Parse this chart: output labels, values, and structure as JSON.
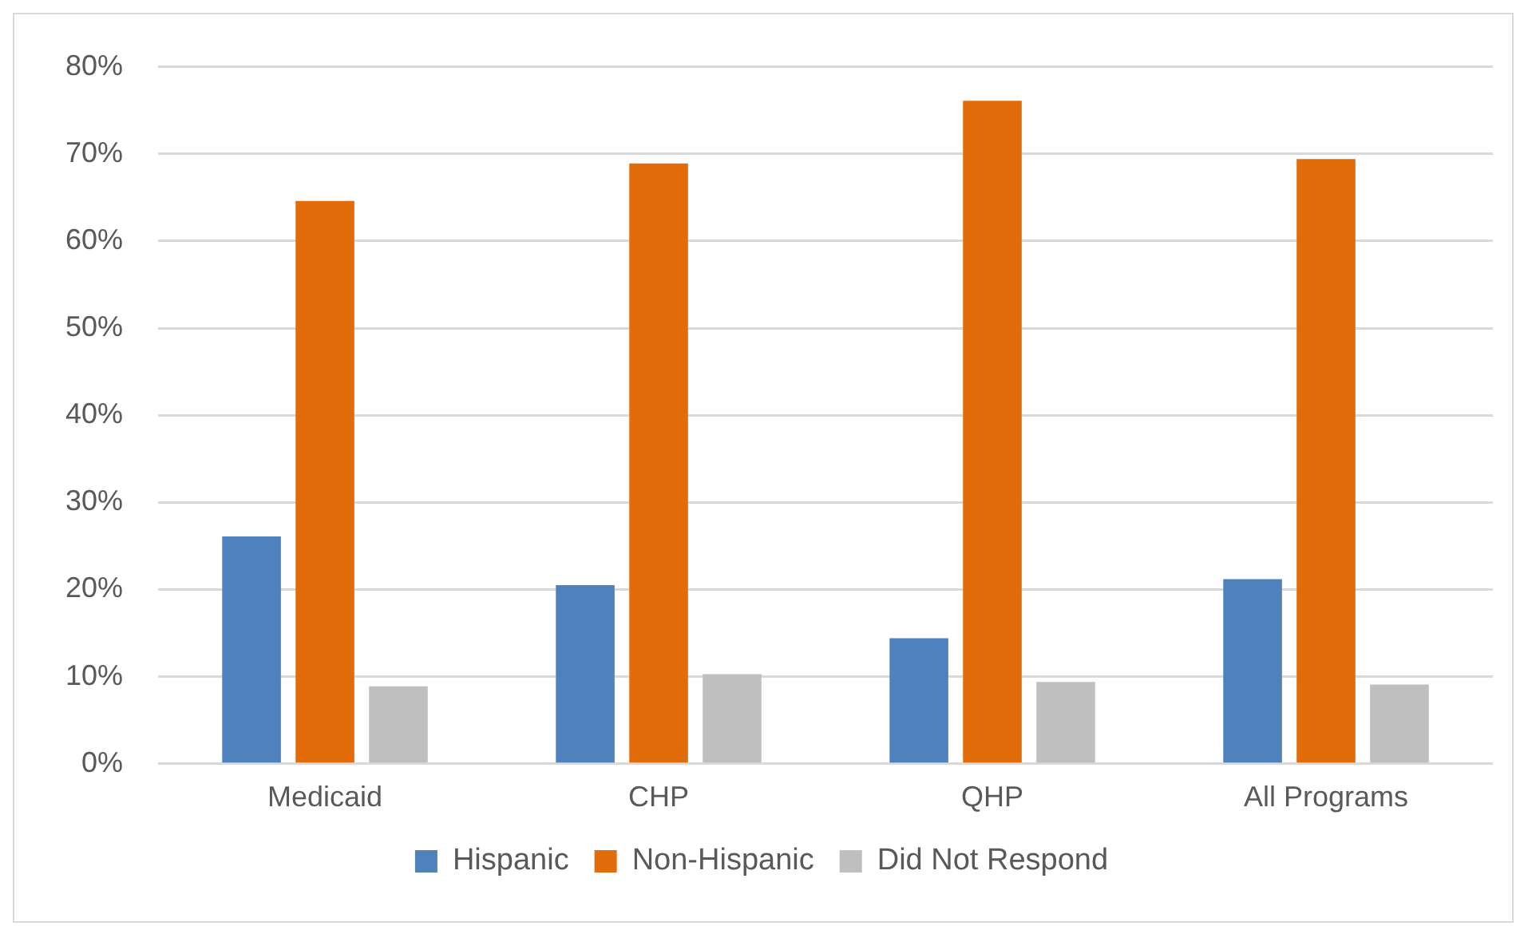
{
  "chart_data": {
    "type": "bar",
    "categories": [
      "Medicaid",
      "CHP",
      "QHP",
      "All Programs"
    ],
    "series": [
      {
        "name": "Hispanic",
        "color": "#4f81bd",
        "values": [
          26.1,
          20.5,
          14.4,
          21.2
        ]
      },
      {
        "name": "Non-Hispanic",
        "color": "#e36c0a",
        "values": [
          64.6,
          68.9,
          76.1,
          69.4
        ]
      },
      {
        "name": "Did Not Respond",
        "color": "#bfbfbf",
        "values": [
          8.9,
          10.3,
          9.4,
          9.1
        ]
      }
    ],
    "ylim": [
      0,
      80
    ],
    "yticks": [
      {
        "value": 0,
        "label": "0%"
      },
      {
        "value": 10,
        "label": "10%"
      },
      {
        "value": 20,
        "label": "20%"
      },
      {
        "value": 30,
        "label": "30%"
      },
      {
        "value": 40,
        "label": "40%"
      },
      {
        "value": 50,
        "label": "50%"
      },
      {
        "value": 60,
        "label": "60%"
      },
      {
        "value": 70,
        "label": "70%"
      },
      {
        "value": 80,
        "label": "80%"
      }
    ],
    "grid": "y",
    "legend": "bottom"
  }
}
